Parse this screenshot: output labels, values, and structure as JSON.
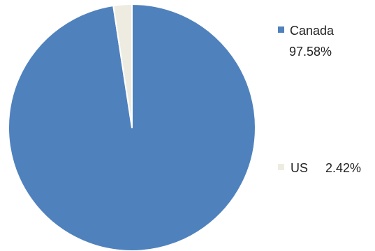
{
  "chart_data": {
    "type": "pie",
    "slices": [
      {
        "label": "Canada",
        "value": 97.58,
        "value_label": "97.58%",
        "color": "#4f81bd"
      },
      {
        "label": "US",
        "value": 2.42,
        "value_label": "2.42%",
        "color": "#eeece1"
      }
    ],
    "legend_position": "right"
  }
}
